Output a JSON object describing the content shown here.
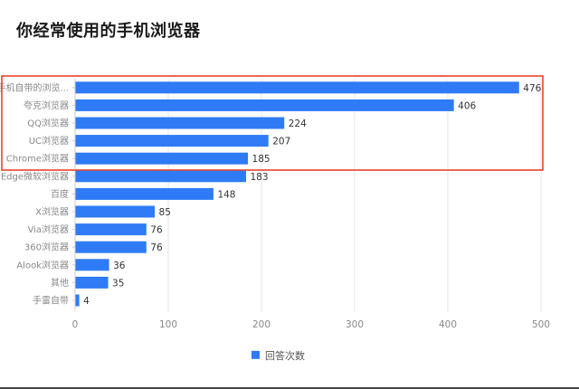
{
  "title": "你经常使用的手机浏览器",
  "highlight_color": "#e8442a",
  "bar_color": "#2f7bf5",
  "chart_data": {
    "type": "bar",
    "orientation": "horizontal",
    "categories": [
      "手机自带的浏览...",
      "夸克浏览器",
      "QQ浏览器",
      "UC浏览器",
      "Chrome浏览器",
      "Edge微软浏览器",
      "百度",
      "X浏览器",
      "Via浏览器",
      "360浏览器",
      "Alook浏览器",
      "其他",
      "手雷自带"
    ],
    "series": [
      {
        "name": "回答次数",
        "values": [
          476,
          406,
          224,
          207,
          185,
          183,
          148,
          85,
          76,
          76,
          36,
          35,
          4
        ]
      }
    ],
    "xlim": [
      0,
      500
    ],
    "xticks": [
      0,
      100,
      200,
      300,
      400,
      500
    ],
    "grid": true,
    "legend_position": "bottom-center",
    "highlighted_categories": [
      "手机自带的浏览...",
      "夸克浏览器",
      "QQ浏览器",
      "UC浏览器",
      "Chrome浏览器"
    ]
  }
}
